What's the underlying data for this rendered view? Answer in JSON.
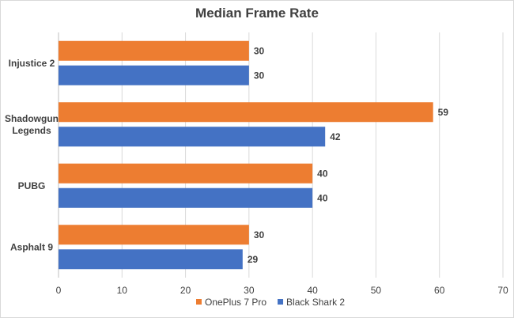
{
  "chart_data": {
    "type": "bar",
    "orientation": "horizontal",
    "title": "Median Frame Rate",
    "categories": [
      [
        "Injustice 2"
      ],
      [
        "Shadowgun",
        "Legends"
      ],
      [
        "PUBG"
      ],
      [
        "Asphalt 9"
      ]
    ],
    "series": [
      {
        "name": "OnePlus 7 Pro",
        "color": "#ed7d31",
        "values": [
          30,
          59,
          40,
          30
        ]
      },
      {
        "name": "Black Shark 2",
        "color": "#4472c4",
        "values": [
          30,
          42,
          40,
          29
        ]
      }
    ],
    "xlim": [
      0,
      70
    ],
    "xticks": [
      0,
      10,
      20,
      30,
      40,
      50,
      60,
      70
    ],
    "grid": true,
    "legend_position": "bottom",
    "data_labels": true
  }
}
